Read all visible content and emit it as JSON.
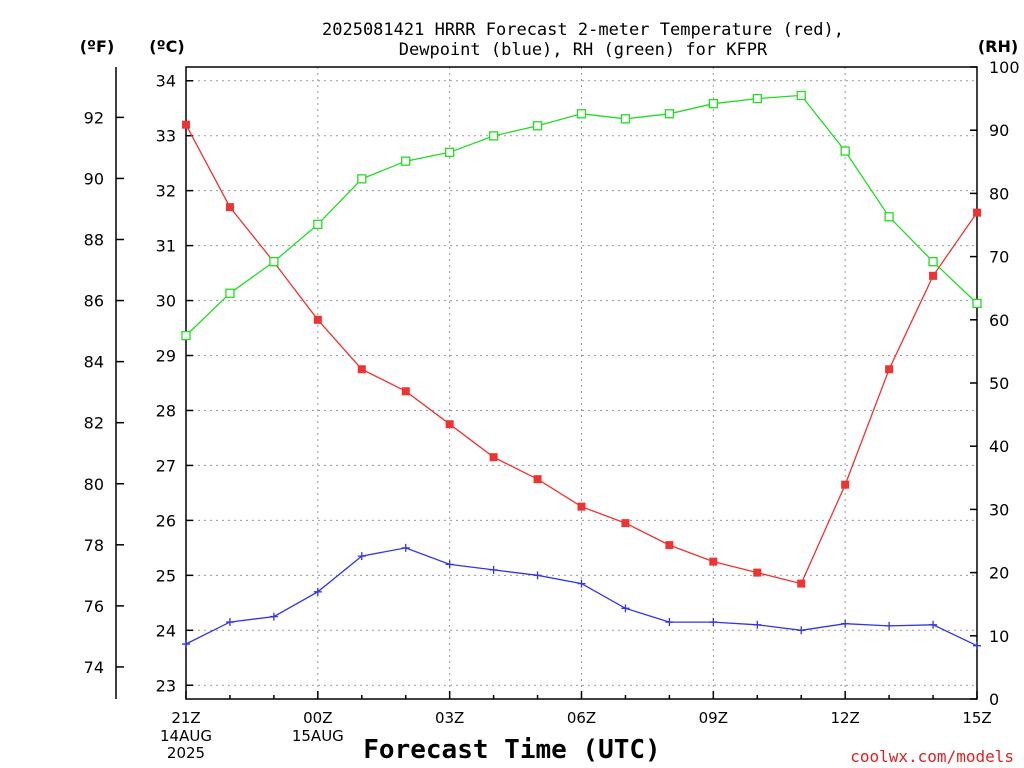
{
  "chart_data": {
    "type": "line",
    "title_line1": "2025081421 HRRR Forecast 2-meter Temperature (red),",
    "title_line2": "Dewpoint (blue), RH (green) for KFPR",
    "xlabel": "Forecast Time (UTC)",
    "left_unit_f": "(ºF)",
    "left_unit_c": "(ºC)",
    "right_unit": "(RH)",
    "credit": "coolwx.com/models",
    "x": [
      "21Z",
      "22Z",
      "23Z",
      "00Z",
      "01Z",
      "02Z",
      "03Z",
      "04Z",
      "05Z",
      "06Z",
      "07Z",
      "08Z",
      "09Z",
      "10Z",
      "11Z",
      "12Z",
      "13Z",
      "14Z",
      "15Z"
    ],
    "x_ticks": [
      {
        "label": "21Z",
        "sub1": "14AUG",
        "sub2": "2025"
      },
      {
        "label": "00Z",
        "sub1": "15AUG",
        "sub2": ""
      },
      {
        "label": "03Z",
        "sub1": "",
        "sub2": ""
      },
      {
        "label": "06Z",
        "sub1": "",
        "sub2": ""
      },
      {
        "label": "09Z",
        "sub1": "",
        "sub2": ""
      },
      {
        "label": "12Z",
        "sub1": "",
        "sub2": ""
      },
      {
        "label": "15Z",
        "sub1": "",
        "sub2": ""
      }
    ],
    "x_tick_index": [
      0,
      3,
      6,
      9,
      12,
      15,
      18
    ],
    "celsius_ylim": [
      22.75,
      34.25
    ],
    "celsius_ticks": [
      "23",
      "24",
      "25",
      "26",
      "27",
      "28",
      "29",
      "30",
      "31",
      "32",
      "33",
      "34"
    ],
    "fahrenheit_ticks": [
      "74",
      "76",
      "78",
      "80",
      "82",
      "84",
      "86",
      "88",
      "90",
      "92"
    ],
    "rh_ylim": [
      0,
      100
    ],
    "rh_ticks": [
      "0",
      "10",
      "20",
      "30",
      "40",
      "50",
      "60",
      "70",
      "80",
      "90",
      "100"
    ],
    "grid": true,
    "series": [
      {
        "name": "Temperature",
        "color": "#ee3333",
        "marker": "filled-square",
        "values": [
          33.2,
          31.7,
          30.7,
          29.65,
          28.75,
          28.35,
          27.75,
          27.15,
          26.75,
          26.25,
          25.95,
          25.55,
          25.25,
          25.05,
          24.85,
          26.65,
          28.75,
          30.45,
          31.6
        ]
      },
      {
        "name": "Dewpoint",
        "color": "#3333ee",
        "marker": "plus",
        "values": [
          23.75,
          24.15,
          24.25,
          24.7,
          25.35,
          25.5,
          25.2,
          25.1,
          25.0,
          24.85,
          24.4,
          24.15,
          24.15,
          24.1,
          24.0,
          24.12,
          24.08,
          24.1,
          23.72
        ]
      },
      {
        "name": "RH",
        "color": "#22dd22",
        "marker": "open-square",
        "values": [
          57.5,
          64.2,
          69.2,
          75.1,
          82.3,
          85.1,
          86.5,
          89.1,
          90.7,
          92.6,
          91.8,
          92.6,
          94.2,
          95.0,
          95.5,
          86.7,
          76.3,
          69.2,
          62.6
        ]
      }
    ]
  }
}
